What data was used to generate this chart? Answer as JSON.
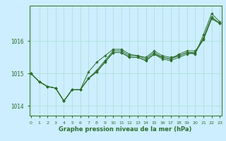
{
  "title": "Graphe pression niveau de la mer (hPa)",
  "bg_color": "#cceeff",
  "grid_color": "#aaddcc",
  "line_color": "#2d6e2d",
  "x_min": 0,
  "x_max": 23,
  "y_min": 1013.7,
  "y_max": 1017.1,
  "y_ticks": [
    1014,
    1015,
    1016
  ],
  "series": [
    [
      1015.0,
      1014.75,
      1014.6,
      1014.55,
      1014.15,
      1014.5,
      1014.5,
      1015.05,
      1015.35,
      1015.55,
      1015.75,
      1015.75,
      1015.6,
      1015.55,
      1015.5,
      1015.7,
      1015.55,
      1015.5,
      1015.55,
      1015.65,
      1015.6,
      1016.2,
      1016.85,
      1016.6
    ],
    [
      1015.0,
      1014.75,
      1014.6,
      1014.55,
      1014.15,
      1014.5,
      1014.5,
      1014.85,
      1015.05,
      1015.35,
      1015.65,
      1015.65,
      1015.5,
      1015.5,
      1015.4,
      1015.6,
      1015.5,
      1015.45,
      1015.55,
      1015.65,
      1015.65,
      1016.05,
      1016.7,
      1016.55
    ],
    [
      1015.0,
      1014.75,
      1014.6,
      1014.55,
      1014.15,
      1014.5,
      1014.5,
      1014.85,
      1015.05,
      1015.35,
      1015.65,
      1015.65,
      1015.5,
      1015.5,
      1015.4,
      1015.6,
      1015.45,
      1015.4,
      1015.5,
      1015.6,
      1015.65,
      1016.1,
      1016.75,
      1016.55
    ],
    [
      1015.0,
      1014.75,
      1014.6,
      1014.55,
      1014.15,
      1014.5,
      1014.5,
      1014.85,
      1015.1,
      1015.4,
      1015.7,
      1015.7,
      1015.55,
      1015.55,
      1015.45,
      1015.65,
      1015.5,
      1015.45,
      1015.6,
      1015.7,
      1015.7,
      1016.05,
      1016.7,
      1016.55
    ]
  ]
}
